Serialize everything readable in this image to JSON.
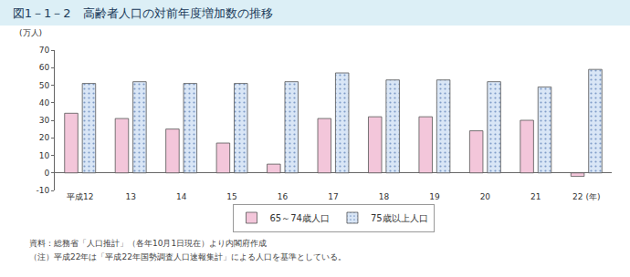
{
  "chart_data": {
    "type": "bar",
    "title": "図1－1－2　高齢者人口の対前年度増加数の推移",
    "y_label": "(万人)",
    "categories": [
      "平成12",
      "13",
      "14",
      "15",
      "16",
      "17",
      "18",
      "19",
      "20",
      "21",
      "22 (年)"
    ],
    "series": [
      {
        "name": "65～74歳人口",
        "color": "#f3c6da",
        "values": [
          34,
          31,
          25,
          17,
          5,
          31,
          32,
          32,
          24,
          30,
          -2
        ]
      },
      {
        "name": "75歳以上人口",
        "color": "#d9e6f6",
        "marker": "dotted",
        "values": [
          51,
          52,
          51,
          51,
          52,
          57,
          53,
          53,
          52,
          49,
          59
        ]
      }
    ],
    "ylim": [
      -10,
      70
    ],
    "yticks": [
      -10,
      0,
      10,
      20,
      30,
      40,
      50,
      60,
      70
    ],
    "grid": false,
    "legend": "bottom",
    "annotations": [
      "資料：総務省「人口推計」（各年10月1日現在）より内閣府作成",
      "（注）平成22年は「平成22年国勢調査人口速報集計」による人口を基準としている。"
    ]
  }
}
